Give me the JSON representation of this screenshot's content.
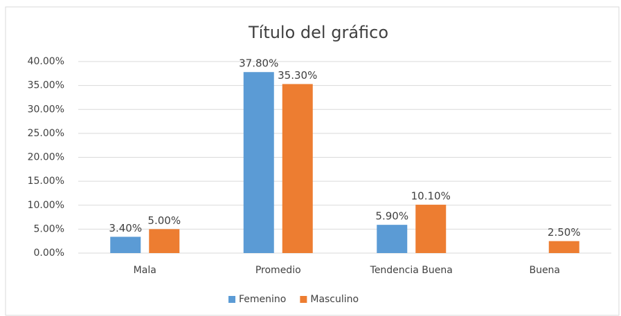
{
  "chart_data": {
    "type": "bar",
    "title": "Título del gráfico",
    "categories": [
      "Mala",
      "Promedio",
      "Tendencia Buena",
      "Buena"
    ],
    "series": [
      {
        "name": "Femenino",
        "color": "#5b9bd5",
        "values": [
          3.4,
          37.8,
          5.9,
          null
        ],
        "value_labels": [
          "3.40%",
          "37.80%",
          "5.90%",
          null
        ]
      },
      {
        "name": "Masculino",
        "color": "#ed7d31",
        "values": [
          5.0,
          35.3,
          10.1,
          2.5
        ],
        "value_labels": [
          "5.00%",
          "35.30%",
          "10.10%",
          "2.50%"
        ]
      }
    ],
    "ylim": [
      0,
      40
    ],
    "yticks": [
      {
        "value": 0,
        "label": "0.00%"
      },
      {
        "value": 5,
        "label": "5.00%"
      },
      {
        "value": 10,
        "label": "10.00%"
      },
      {
        "value": 15,
        "label": "15.00%"
      },
      {
        "value": 20,
        "label": "20.00%"
      },
      {
        "value": 25,
        "label": "25.00%"
      },
      {
        "value": 30,
        "label": "30.00%"
      },
      {
        "value": 35,
        "label": "35.00%"
      },
      {
        "value": 40,
        "label": "40.00%"
      }
    ],
    "grid": true,
    "legend": "bottom"
  }
}
